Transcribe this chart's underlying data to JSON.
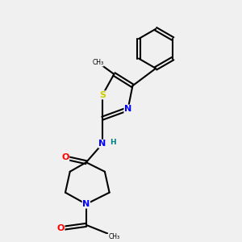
{
  "background_color": "#f0f0f0",
  "bond_color": "#000000",
  "atom_colors": {
    "S": "#cccc00",
    "N": "#0000ff",
    "O": "#ff0000",
    "H": "#008080",
    "C": "#000000"
  },
  "figsize": [
    3.0,
    3.0
  ],
  "dpi": 100
}
